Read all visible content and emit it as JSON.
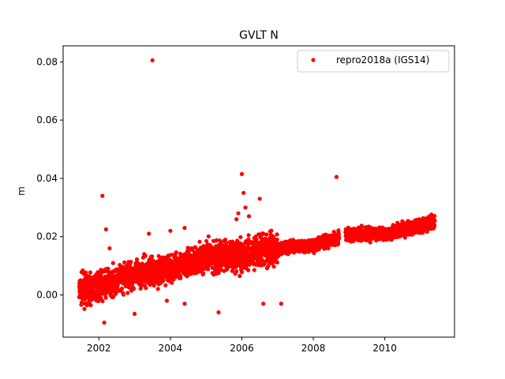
{
  "chart_data": {
    "type": "scatter",
    "title": "GVLT N",
    "xlabel": "",
    "ylabel": "m",
    "xlim": [
      2001.0,
      2011.95
    ],
    "ylim": [
      -0.0145,
      0.0855
    ],
    "xticks": [
      2002,
      2004,
      2006,
      2008,
      2010
    ],
    "xtick_labels": [
      "2002",
      "2004",
      "2006",
      "2008",
      "2010"
    ],
    "yticks": [
      0.0,
      0.02,
      0.04,
      0.06,
      0.08
    ],
    "ytick_labels": [
      "0.00",
      "0.02",
      "0.04",
      "0.06",
      "0.08"
    ],
    "legend_position": "top-right",
    "grid": false,
    "marker_color": "#ff0000",
    "series": [
      {
        "name": "repro2018a (IGS14)",
        "color": "#ff0000",
        "trend": [
          [
            2001.45,
            0.0015
          ],
          [
            2002.0,
            0.003
          ],
          [
            2003.0,
            0.007
          ],
          [
            2004.0,
            0.009
          ],
          [
            2005.0,
            0.013
          ],
          [
            2006.0,
            0.014
          ],
          [
            2007.0,
            0.016
          ],
          [
            2008.0,
            0.017
          ],
          [
            2009.0,
            0.021
          ],
          [
            2010.0,
            0.021
          ],
          [
            2011.4,
            0.025
          ]
        ],
        "points": [
          [
            2003.5,
            0.0805
          ],
          [
            2006.0,
            0.0415
          ],
          [
            2008.65,
            0.0405
          ],
          [
            2002.1,
            0.034
          ],
          [
            2006.05,
            0.035
          ],
          [
            2006.5,
            0.033
          ],
          [
            2002.2,
            0.0225
          ],
          [
            2002.15,
            -0.0095
          ],
          [
            2003.0,
            -0.0065
          ],
          [
            2005.35,
            -0.006
          ],
          [
            2006.6,
            -0.003
          ],
          [
            2007.1,
            -0.003
          ],
          [
            2006.1,
            0.03
          ],
          [
            2005.85,
            0.026
          ],
          [
            2003.4,
            0.021
          ],
          [
            2004.0,
            0.022
          ],
          [
            2004.4,
            0.023
          ],
          [
            2002.3,
            0.016
          ],
          [
            2003.9,
            -0.002
          ],
          [
            2004.4,
            -0.003
          ],
          [
            2005.9,
            0.028
          ],
          [
            2006.2,
            0.027
          ]
        ]
      }
    ]
  }
}
